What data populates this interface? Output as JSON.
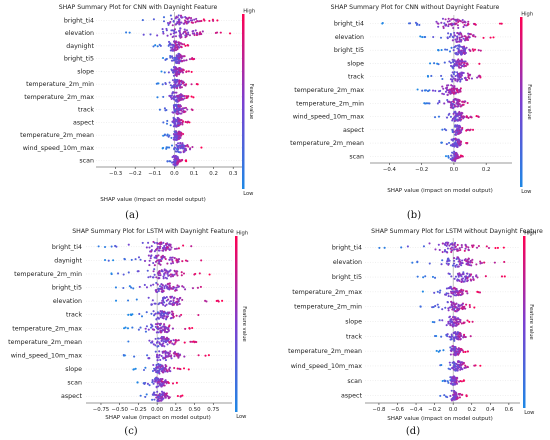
{
  "colors": {
    "low": "#1e88e5",
    "high": "#ff0052",
    "zero_line": "#999999",
    "axis": "#333333"
  },
  "chart_data": [
    {
      "type": "scatter",
      "subtype": "shap-beeswarm",
      "title": "SHAP Summary Plot for CNN with Daynight Feature",
      "xlabel": "SHAP value (impact on model output)",
      "xlim": [
        -0.4,
        0.35
      ],
      "xticks": [
        -0.3,
        -0.2,
        -0.1,
        0.0,
        0.1,
        0.2,
        0.3
      ],
      "xtick_labels": [
        "−0.3",
        "−0.2",
        "−0.1",
        "0.0",
        "0.1",
        "0.2",
        "0.3"
      ],
      "colorbar": {
        "title": "Feature value",
        "high": "High",
        "low": "Low"
      },
      "panel_label": "(a)",
      "features": [
        "bright_ti4",
        "elevation",
        "daynight",
        "bright_ti5",
        "slope",
        "temperature_2m_min",
        "temperature_2m_max",
        "track",
        "aspect",
        "temperature_2m_mean",
        "wind_speed_10m_max",
        "scan"
      ],
      "ranges": [
        [
          -0.22,
          0.24
        ],
        [
          -0.3,
          0.3
        ],
        [
          -0.12,
          0.1
        ],
        [
          -0.08,
          0.12
        ],
        [
          -0.08,
          0.09
        ],
        [
          -0.1,
          0.12
        ],
        [
          -0.1,
          0.12
        ],
        [
          -0.08,
          0.12
        ],
        [
          -0.07,
          0.09
        ],
        [
          -0.06,
          0.08
        ],
        [
          -0.06,
          0.15
        ],
        [
          -0.05,
          0.06
        ]
      ]
    },
    {
      "type": "scatter",
      "subtype": "shap-beeswarm",
      "title": "SHAP Summary Plot for CNN without Daynight Feature",
      "xlabel": "SHAP value (impact on model output)",
      "xlim": [
        -0.52,
        0.36
      ],
      "xticks": [
        -0.4,
        -0.2,
        0.0,
        0.2
      ],
      "xtick_labels": [
        "−0.4",
        "−0.2",
        "0.0",
        "0.2"
      ],
      "colorbar": {
        "title": "Feature value",
        "high": "High",
        "low": "Low"
      },
      "panel_label": "(b)",
      "features": [
        "bright_ti4",
        "elevation",
        "bright_ti5",
        "slope",
        "track",
        "temperature_2m_max",
        "temperature_2m_min",
        "wind_speed_10m_max",
        "aspect",
        "temperature_2m_mean",
        "scan"
      ],
      "ranges": [
        [
          -0.45,
          0.3
        ],
        [
          -0.22,
          0.28
        ],
        [
          -0.1,
          0.2
        ],
        [
          -0.15,
          0.18
        ],
        [
          -0.2,
          0.26
        ],
        [
          -0.25,
          0.12
        ],
        [
          -0.2,
          0.15
        ],
        [
          -0.12,
          0.16
        ],
        [
          -0.08,
          0.12
        ],
        [
          -0.08,
          0.1
        ],
        [
          -0.06,
          0.06
        ]
      ]
    },
    {
      "type": "scatter",
      "subtype": "shap-beeswarm",
      "title": "SHAP Summary Plot for LSTM with Daynight Feature",
      "xlabel": "SHAP value (impact on model output)",
      "xlim": [
        -0.95,
        1.0
      ],
      "xticks": [
        -0.75,
        -0.5,
        -0.25,
        0.0,
        0.25,
        0.5,
        0.75
      ],
      "xtick_labels": [
        "−0.75",
        "−0.50",
        "−0.25",
        "0.00",
        "0.25",
        "0.50",
        "0.75"
      ],
      "colorbar": {
        "title": "Feature value",
        "high": "High",
        "low": "Low"
      },
      "panel_label": "(c)",
      "features": [
        "bright_ti4",
        "daynight",
        "temperature_2m_min",
        "bright_ti5",
        "elevation",
        "track",
        "temperature_2m_max",
        "temperature_2m_mean",
        "wind_speed_10m_max",
        "slope",
        "scan",
        "aspect"
      ],
      "ranges": [
        [
          -0.85,
          0.65
        ],
        [
          -0.8,
          0.7
        ],
        [
          -0.7,
          0.75
        ],
        [
          -0.65,
          0.75
        ],
        [
          -0.6,
          0.9
        ],
        [
          -0.4,
          0.6
        ],
        [
          -0.55,
          0.55
        ],
        [
          -0.4,
          0.55
        ],
        [
          -0.5,
          0.7
        ],
        [
          -0.35,
          0.45
        ],
        [
          -0.3,
          0.3
        ],
        [
          -0.3,
          0.35
        ]
      ]
    },
    {
      "type": "scatter",
      "subtype": "shap-beeswarm",
      "title": "SHAP Summary Plot for LSTM without Daynight Feature",
      "xlabel": "SHAP value (impact on model output)",
      "xlim": [
        -0.95,
        0.72
      ],
      "xticks": [
        -0.8,
        -0.6,
        -0.4,
        -0.2,
        0.0,
        0.2,
        0.4,
        0.6
      ],
      "xtick_labels": [
        "−0.8",
        "−0.6",
        "−0.4",
        "−0.2",
        "0.0",
        "0.2",
        "0.4",
        "0.6"
      ],
      "colorbar": {
        "title": "Feature value",
        "high": "High",
        "low": "Low"
      },
      "panel_label": "(d)",
      "features": [
        "bright_ti4",
        "elevation",
        "bright_ti5",
        "temperature_2m_max",
        "temperature_2m_min",
        "slope",
        "track",
        "temperature_2m_mean",
        "wind_speed_10m_max",
        "scan",
        "aspect"
      ],
      "ranges": [
        [
          -0.88,
          0.6
        ],
        [
          -0.45,
          0.6
        ],
        [
          -0.4,
          0.58
        ],
        [
          -0.35,
          0.3
        ],
        [
          -0.4,
          0.35
        ],
        [
          -0.25,
          0.22
        ],
        [
          -0.2,
          0.25
        ],
        [
          -0.18,
          0.2
        ],
        [
          -0.2,
          0.3
        ],
        [
          -0.12,
          0.12
        ],
        [
          -0.15,
          0.15
        ]
      ]
    }
  ]
}
